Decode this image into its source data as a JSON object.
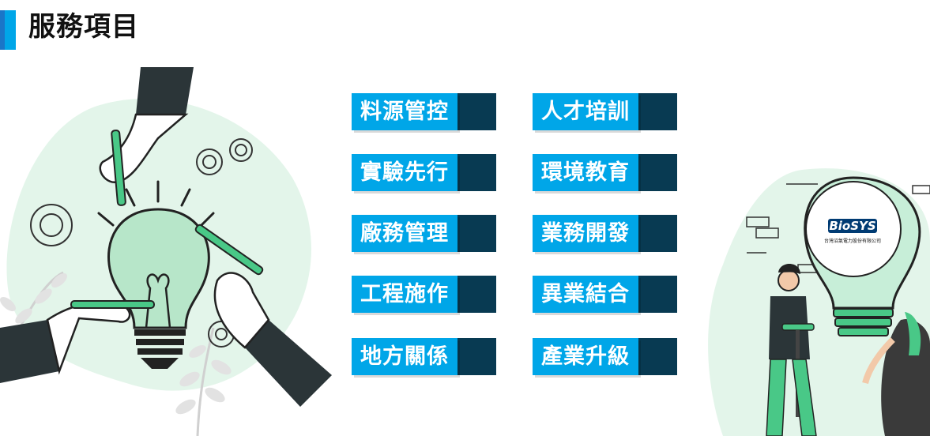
{
  "page": {
    "title": "服務項目"
  },
  "colors": {
    "accent_blue": "#00a6e8",
    "accent_dark_blue": "#1a76c8",
    "tail_navy": "#083a52",
    "illustration_green": "#49c887",
    "illustration_mint": "#e3f5ea"
  },
  "services": {
    "left_column": [
      {
        "label": "料源管控"
      },
      {
        "label": "實驗先行"
      },
      {
        "label": "廠務管理"
      },
      {
        "label": "工程施作"
      },
      {
        "label": "地方關係"
      }
    ],
    "right_column": [
      {
        "label": "人才培訓"
      },
      {
        "label": "環境教育"
      },
      {
        "label": "業務開發"
      },
      {
        "label": "異業結合"
      },
      {
        "label": "產業升級"
      }
    ]
  },
  "logo": {
    "brand": "BioSYS",
    "company": "台灣沼氣電力股份有限公司"
  },
  "icons": [
    "lightbulb-icon",
    "gear-icon",
    "hand-icon",
    "leaf-icon"
  ]
}
